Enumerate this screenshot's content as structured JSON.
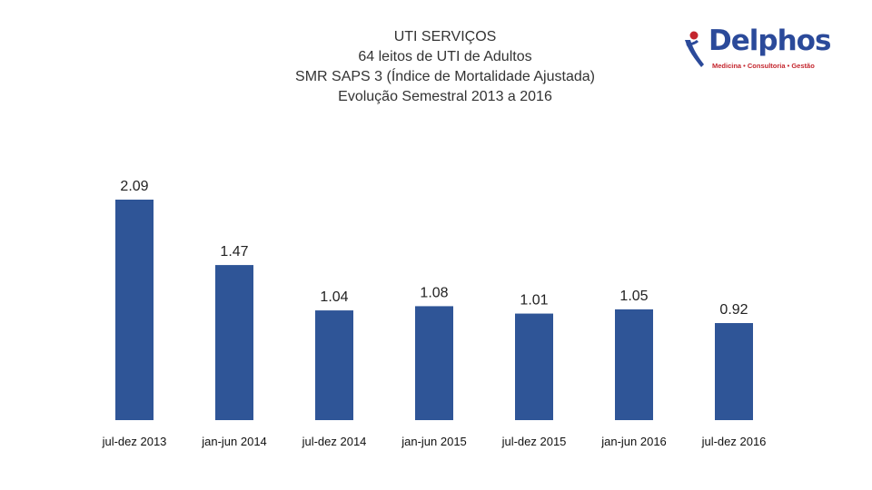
{
  "logo": {
    "brand": "Delphos",
    "tagline": "Medicina • Consultoria • Gestão"
  },
  "chart_data": {
    "type": "bar",
    "title": "UTI SERVIÇOS",
    "subtitle": "64 leitos de UTI de Adultos",
    "subtitle2": "SMR SAPS 3 (Índice de Mortalidade Ajustada)",
    "subtitle3": "Evolução Semestral 2013 a 2016",
    "categories": [
      "jul-dez 2013",
      "jan-jun 2014",
      "jul-dez 2014",
      "jan-jun 2015",
      "jul-dez 2015",
      "jan-jun 2016",
      "jul-dez 2016"
    ],
    "values": [
      2.09,
      1.47,
      1.04,
      1.08,
      1.01,
      1.05,
      0.92
    ],
    "labels": [
      "2.09",
      "1.47",
      "1.04",
      "1.08",
      "1.01",
      "1.05",
      "0.92"
    ],
    "bar_color": "#2f5597",
    "xlabel": "",
    "ylabel": "",
    "ylim": [
      0,
      2.09
    ],
    "grid": false,
    "legend": "none"
  }
}
